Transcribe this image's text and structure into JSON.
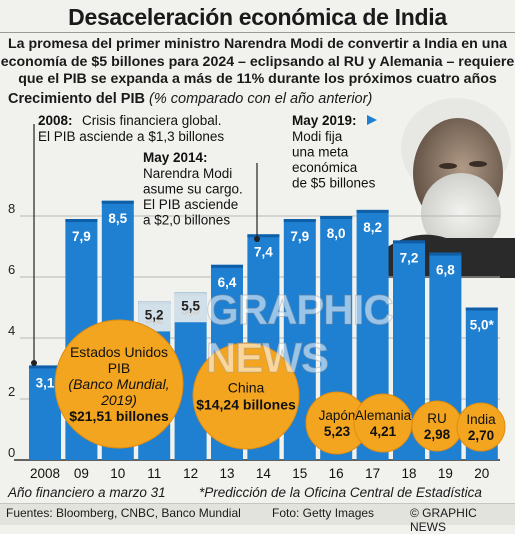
{
  "title": "Desaceleración económica de India",
  "subtitle_lines": [
    "La promesa del primer ministro Narendra Modi de convertir a India en una",
    "economía de $5 billones para 2024 – eclipsando al RU y Alemania – requiere",
    "que el PIB se expanda a más de 11% durante los próximos cuatro años"
  ],
  "chart_label_bold": "Crecimiento del PIB",
  "chart_label_italic": "(% comparado con el año anterior)",
  "chart_data": {
    "type": "bar",
    "categories": [
      "2008",
      "09",
      "10",
      "11",
      "12",
      "13",
      "14",
      "15",
      "16",
      "17",
      "18",
      "19",
      "20"
    ],
    "values": [
      3.1,
      7.9,
      8.5,
      5.2,
      5.5,
      6.4,
      7.4,
      7.9,
      8.0,
      8.2,
      7.2,
      6.8,
      5.0
    ],
    "value_labels": [
      "3,1",
      "7,9",
      "8,5",
      "5,2",
      "5,5",
      "6,4",
      "7,4",
      "7,9",
      "8,0",
      "8,2",
      "7,2",
      "6,8",
      "5,0*"
    ],
    "yticks": [
      "0",
      "2",
      "4",
      "6",
      "8"
    ],
    "ylim": [
      0,
      10
    ],
    "grid": true,
    "xlabel": "Año financiero a marzo 31",
    "ylabel": "",
    "bar_color": "#1f7fd0",
    "bar_color_dark": "#0f5fa8"
  },
  "circles": [
    {
      "lines": [
        "Estados Unidos",
        "PIB"
      ],
      "italic": [
        "(Banco Mundial,",
        "2019)"
      ],
      "value": "$21,51 billones",
      "value_gdp": 21.51
    },
    {
      "lines": [
        "China"
      ],
      "italic": [],
      "value": "$14,24 billones",
      "value_gdp": 14.24
    },
    {
      "lines": [
        "Japón"
      ],
      "italic": [],
      "value": "5,23",
      "value_gdp": 5.23
    },
    {
      "lines": [
        "Alemania"
      ],
      "italic": [],
      "value": "4,21",
      "value_gdp": 4.21
    },
    {
      "lines": [
        "RU"
      ],
      "italic": [],
      "value": "2,98",
      "value_gdp": 2.98
    },
    {
      "lines": [
        "India"
      ],
      "italic": [],
      "value": "2,70",
      "value_gdp": 2.7
    }
  ],
  "circle_color": "#f3a51f",
  "annotations": [
    {
      "year": "2008:",
      "text": [
        "Crisis financiera global.",
        "El PIB asciende a $1,3 billones"
      ]
    },
    {
      "year": "May 2014:",
      "text": [
        "Narendra Modi",
        "asume su cargo.",
        "El PIB asciende",
        "a $2,0 billones"
      ]
    },
    {
      "year": "May 2019:",
      "text": [
        "Modi fija",
        "una meta",
        "económica",
        "de $5 billones"
      ]
    }
  ],
  "footnote_left": "Año financiero a marzo 31",
  "footnote_right": "*Predicción de la Oficina Central de Estadística",
  "sources": "Fuentes: Bloomberg, CNBC, Banco Mundial",
  "photo": "Foto: Getty Images",
  "brand": "© GRAPHIC NEWS",
  "watermark": "GRAPHIC NEWS"
}
